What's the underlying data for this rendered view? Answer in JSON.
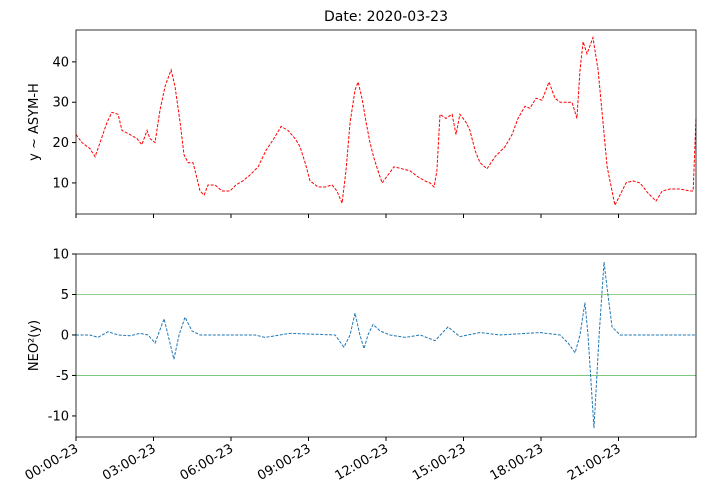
{
  "chart_data": [
    {
      "type": "line",
      "title": "Date: 2020-03-23",
      "ylabel": "y ~ ASYM-H",
      "xlim": [
        0,
        24
      ],
      "ylim": [
        2.3,
        47.9
      ],
      "yticks": [
        10,
        20,
        30,
        40
      ],
      "series": [
        {
          "name": "ASYM-H",
          "color": "#ff0000",
          "dashed": true,
          "x": [
            0,
            0.23,
            0.54,
            0.74,
            0.93,
            1.2,
            1.39,
            1.63,
            1.78,
            2.09,
            2.36,
            2.55,
            2.75,
            2.86,
            3.06,
            3.25,
            3.45,
            3.68,
            3.83,
            4.03,
            4.18,
            4.34,
            4.53,
            4.65,
            4.8,
            4.96,
            5.11,
            5.38,
            5.65,
            5.96,
            6.19,
            6.46,
            6.74,
            7.05,
            7.35,
            7.66,
            7.94,
            8.21,
            8.48,
            8.67,
            8.87,
            9.06,
            9.37,
            9.64,
            9.91,
            10.1,
            10.3,
            10.45,
            10.61,
            10.8,
            10.92,
            11.07,
            11.23,
            11.38,
            11.54,
            11.69,
            11.85,
            12.08,
            12.31,
            12.62,
            12.93,
            13.24,
            13.51,
            13.7,
            13.86,
            13.97,
            14.09,
            14.32,
            14.56,
            14.71,
            14.86,
            15.1,
            15.25,
            15.45,
            15.64,
            15.91,
            16.22,
            16.61,
            16.88,
            17.11,
            17.38,
            17.57,
            17.81,
            18.04,
            18.31,
            18.54,
            18.74,
            18.97,
            19.2,
            19.39,
            19.51,
            19.63,
            19.78,
            20.01,
            20.21,
            20.4,
            20.56,
            20.75,
            20.86,
            21.06,
            21.29,
            21.56,
            21.83,
            22.14,
            22.45,
            22.69,
            23.0,
            23.38,
            23.77,
            23.89,
            24.0
          ],
          "values": [
            22,
            20,
            18.5,
            16.5,
            20,
            25,
            27.5,
            27,
            23,
            22,
            21,
            19.5,
            23,
            21,
            20,
            28,
            34,
            38,
            34,
            25,
            17,
            15,
            15,
            12,
            8,
            7,
            9.5,
            9.5,
            8,
            8,
            9.5,
            10.5,
            12,
            14,
            18,
            21,
            24,
            23,
            21,
            19,
            15,
            10.5,
            9,
            9,
            9.5,
            8,
            5,
            13,
            25,
            33,
            35,
            31,
            25,
            20,
            16,
            13,
            10,
            12,
            14,
            13.5,
            13,
            11.5,
            10.5,
            10,
            9,
            13,
            27,
            26,
            27,
            22,
            27,
            25,
            23,
            18,
            15,
            13.5,
            16.5,
            19,
            22,
            26,
            29,
            28.5,
            31,
            30.5,
            35,
            31,
            30,
            30,
            30,
            26,
            38,
            45,
            42,
            46,
            38,
            25,
            14,
            8,
            4.5,
            7,
            10,
            10.5,
            10,
            7.5,
            5.5,
            8,
            8.5,
            8.5,
            8,
            8,
            26
          ]
        }
      ]
    },
    {
      "type": "line",
      "ylabel": "NEO²(y)",
      "xlim": [
        0,
        24
      ],
      "ylim": [
        -12.6,
        10
      ],
      "yticks": [
        -10,
        -5,
        0,
        5,
        10
      ],
      "xticks": [
        {
          "value": 0,
          "label": "00:00-23"
        },
        {
          "value": 3,
          "label": "03:00-23"
        },
        {
          "value": 6,
          "label": "06:00-23"
        },
        {
          "value": 9,
          "label": "09:00-23"
        },
        {
          "value": 12,
          "label": "12:00-23"
        },
        {
          "value": 15,
          "label": "15:00-23"
        },
        {
          "value": 18,
          "label": "18:00-23"
        },
        {
          "value": 21,
          "label": "21:00-23"
        }
      ],
      "hlines": [
        5,
        -5
      ],
      "hline_color": "#2ca02c",
      "series": [
        {
          "name": "NEO",
          "color": "#1f77b4",
          "dashed": true,
          "x": [
            0,
            0.54,
            0.85,
            1.24,
            1.63,
            2.09,
            2.48,
            2.79,
            3.06,
            3.41,
            3.6,
            3.79,
            3.99,
            4.22,
            4.49,
            4.8,
            6.93,
            7.32,
            8.28,
            10.03,
            10.37,
            10.61,
            10.8,
            10.99,
            11.15,
            11.3,
            11.5,
            11.77,
            12.15,
            12.74,
            13.32,
            13.9,
            14.4,
            14.86,
            15.64,
            16.41,
            17.96,
            18.74,
            19.05,
            19.32,
            19.51,
            19.7,
            19.82,
            20.05,
            20.25,
            20.44,
            20.59,
            20.75,
            21.06,
            24
          ],
          "values": [
            0,
            0,
            -0.3,
            0.4,
            0,
            -0.1,
            0.2,
            0,
            -1,
            2,
            -0.5,
            -3,
            0,
            2.2,
            0.5,
            0,
            0,
            -0.3,
            0.2,
            0,
            -1.5,
            0,
            2.7,
            0,
            -1.7,
            0,
            1.3,
            0.5,
            0,
            -0.3,
            0,
            -0.7,
            1,
            -0.2,
            0.3,
            0,
            0.3,
            0,
            -1,
            -2.2,
            0,
            4,
            0,
            -11.5,
            0,
            9,
            5,
            1,
            0,
            0
          ]
        }
      ]
    }
  ]
}
